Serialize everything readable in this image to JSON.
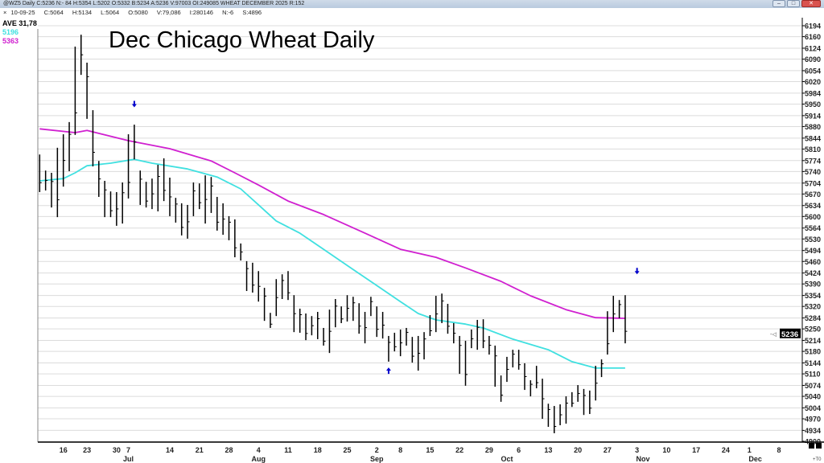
{
  "window": {
    "title": "@WZ5 Daily C:5236 N:- 84 H:5354 L:5202 O:5332 B:5234 A:5236 V:97003 OI:249085 WHEAT DECEMBER 2025 R:152",
    "buttons": {
      "minimize": "–",
      "maximize": "□",
      "close": "✕"
    }
  },
  "info_bar": {
    "date": "10-09-25",
    "close": "C:5064",
    "high": "H:5134",
    "low": "L:5064",
    "open": "O:5080",
    "volume": "V:79,086",
    "oi": "I:280146",
    "net": "N:-6",
    "settle": "S:4896"
  },
  "legend": {
    "ave": "AVE 31,78",
    "ma_fast": "5196",
    "ma_slow": "5363"
  },
  "colors": {
    "ma_fast": "#40e0e0",
    "ma_slow": "#d020d0",
    "bars": "#000000",
    "arrow": "#0000cc",
    "grid": "#dcdcdc"
  },
  "current_price": "5236",
  "corner_label": "+T0",
  "chart_data": {
    "type": "ohlc-bar",
    "title": "Dec Chicago Wheat Daily",
    "ylim": [
      4900,
      6194
    ],
    "yticks": [
      6194,
      6160,
      6124,
      6090,
      6054,
      6020,
      5984,
      5950,
      5914,
      5880,
      5844,
      5810,
      5774,
      5740,
      5704,
      5670,
      5634,
      5600,
      5564,
      5530,
      5494,
      5460,
      5424,
      5390,
      5354,
      5320,
      5284,
      5250,
      5214,
      5180,
      5144,
      5110,
      5074,
      5040,
      5004,
      4970,
      4934,
      4900
    ],
    "xlim_bars": [
      0,
      130
    ],
    "xticks": [
      {
        "label": "16",
        "bar": 5
      },
      {
        "label": "23",
        "bar": 9
      },
      {
        "label": "30",
        "bar": 14
      },
      {
        "label": "7",
        "bar": 16
      },
      {
        "label": "14",
        "bar": 23
      },
      {
        "label": "21",
        "bar": 28
      },
      {
        "label": "28",
        "bar": 33
      },
      {
        "label": "4",
        "bar": 38
      },
      {
        "label": "11",
        "bar": 43
      },
      {
        "label": "18",
        "bar": 48
      },
      {
        "label": "25",
        "bar": 53
      },
      {
        "label": "2",
        "bar": 58
      },
      {
        "label": "8",
        "bar": 62
      },
      {
        "label": "15",
        "bar": 67
      },
      {
        "label": "22",
        "bar": 72
      },
      {
        "label": "29",
        "bar": 77
      },
      {
        "label": "6",
        "bar": 82
      },
      {
        "label": "13",
        "bar": 87
      },
      {
        "label": "20",
        "bar": 92
      },
      {
        "label": "27",
        "bar": 97
      },
      {
        "label": "3",
        "bar": 102
      },
      {
        "label": "10",
        "bar": 107
      },
      {
        "label": "17",
        "bar": 112
      },
      {
        "label": "24",
        "bar": 117
      },
      {
        "label": "1",
        "bar": 121
      },
      {
        "label": "8",
        "bar": 126
      }
    ],
    "months": [
      {
        "label": "Jul",
        "bar": 16
      },
      {
        "label": "Aug",
        "bar": 38
      },
      {
        "label": "Sep",
        "bar": 58
      },
      {
        "label": "Oct",
        "bar": 80
      },
      {
        "label": "Nov",
        "bar": 103
      },
      {
        "label": "Dec",
        "bar": 122
      }
    ],
    "bars_hi_lo": [
      [
        5793,
        5676
      ],
      [
        5743,
        5681
      ],
      [
        5736,
        5628
      ],
      [
        5814,
        5598
      ],
      [
        5856,
        5693
      ],
      [
        5894,
        5741
      ],
      [
        6129,
        5854
      ],
      [
        6166,
        6041
      ],
      [
        6079,
        5904
      ],
      [
        5931,
        5756
      ],
      [
        5773,
        5661
      ],
      [
        5711,
        5598
      ],
      [
        5678,
        5598
      ],
      [
        5676,
        5571
      ],
      [
        5706,
        5578
      ],
      [
        5856,
        5656
      ],
      [
        5886,
        5778
      ],
      [
        5743,
        5636
      ],
      [
        5708,
        5628
      ],
      [
        5718,
        5623
      ],
      [
        5761,
        5616
      ],
      [
        5781,
        5648
      ],
      [
        5721,
        5601
      ],
      [
        5658,
        5581
      ],
      [
        5641,
        5541
      ],
      [
        5636,
        5531
      ],
      [
        5706,
        5601
      ],
      [
        5703,
        5623
      ],
      [
        5728,
        5578
      ],
      [
        5723,
        5611
      ],
      [
        5661,
        5556
      ],
      [
        5641,
        5543
      ],
      [
        5601,
        5526
      ],
      [
        5591,
        5473
      ],
      [
        5516,
        5463
      ],
      [
        5461,
        5368
      ],
      [
        5456,
        5363
      ],
      [
        5430,
        5335
      ],
      [
        5378,
        5275
      ],
      [
        5300,
        5253
      ],
      [
        5405,
        5290
      ],
      [
        5420,
        5343
      ],
      [
        5430,
        5340
      ],
      [
        5355,
        5240
      ],
      [
        5313,
        5238
      ],
      [
        5298,
        5215
      ],
      [
        5290,
        5230
      ],
      [
        5303,
        5218
      ],
      [
        5253,
        5198
      ],
      [
        5310,
        5175
      ],
      [
        5343,
        5255
      ],
      [
        5320,
        5268
      ],
      [
        5355,
        5273
      ],
      [
        5350,
        5275
      ],
      [
        5330,
        5235
      ],
      [
        5303,
        5205
      ],
      [
        5350,
        5290
      ],
      [
        5320,
        5225
      ],
      [
        5303,
        5220
      ],
      [
        5228,
        5148
      ],
      [
        5238,
        5180
      ],
      [
        5248,
        5165
      ],
      [
        5253,
        5198
      ],
      [
        5225,
        5145
      ],
      [
        5228,
        5120
      ],
      [
        5240,
        5155
      ],
      [
        5293,
        5228
      ],
      [
        5353,
        5240
      ],
      [
        5360,
        5268
      ],
      [
        5328,
        5235
      ],
      [
        5268,
        5205
      ],
      [
        5228,
        5110
      ],
      [
        5213,
        5073
      ],
      [
        5248,
        5190
      ],
      [
        5278,
        5185
      ],
      [
        5280,
        5190
      ],
      [
        5228,
        5170
      ],
      [
        5198,
        5070
      ],
      [
        5105,
        5023
      ],
      [
        5163,
        5085
      ],
      [
        5185,
        5130
      ],
      [
        5185,
        5123
      ],
      [
        5143,
        5060
      ],
      [
        5090,
        5040
      ],
      [
        5135,
        5065
      ],
      [
        5095,
        4970
      ],
      [
        5017,
        4945
      ],
      [
        5010,
        4925
      ],
      [
        5015,
        4950
      ],
      [
        5040,
        4955
      ],
      [
        5053,
        5007
      ],
      [
        5075,
        5023
      ],
      [
        5063,
        4982
      ],
      [
        5058,
        4985
      ],
      [
        5135,
        5027
      ],
      [
        5155,
        5100
      ],
      [
        5305,
        5170
      ],
      [
        5353,
        5240
      ],
      [
        5340,
        5283
      ],
      [
        5355,
        5205
      ]
    ],
    "series": [
      {
        "name": "ma_fast",
        "points": [
          [
            1,
            5711
          ],
          [
            5,
            5718
          ],
          [
            7,
            5736
          ],
          [
            9,
            5758
          ],
          [
            13,
            5766
          ],
          [
            17,
            5778
          ],
          [
            20,
            5766
          ],
          [
            26,
            5748
          ],
          [
            31,
            5723
          ],
          [
            35,
            5686
          ],
          [
            38,
            5636
          ],
          [
            41,
            5586
          ],
          [
            45,
            5548
          ],
          [
            49,
            5498
          ],
          [
            54,
            5435
          ],
          [
            58,
            5385
          ],
          [
            62,
            5335
          ],
          [
            65,
            5298
          ],
          [
            68,
            5278
          ],
          [
            73,
            5265
          ],
          [
            76,
            5253
          ],
          [
            81,
            5218
          ],
          [
            87,
            5185
          ],
          [
            91,
            5148
          ],
          [
            95,
            5128
          ],
          [
            100,
            5128
          ]
        ]
      },
      {
        "name": "ma_slow",
        "points": [
          [
            1,
            5873
          ],
          [
            7,
            5861
          ],
          [
            9,
            5868
          ],
          [
            16,
            5836
          ],
          [
            23,
            5811
          ],
          [
            30,
            5773
          ],
          [
            34,
            5736
          ],
          [
            38,
            5698
          ],
          [
            43,
            5648
          ],
          [
            49,
            5606
          ],
          [
            56,
            5548
          ],
          [
            62,
            5498
          ],
          [
            68,
            5473
          ],
          [
            73,
            5440
          ],
          [
            79,
            5398
          ],
          [
            84,
            5353
          ],
          [
            90,
            5310
          ],
          [
            95,
            5285
          ],
          [
            100,
            5283
          ]
        ]
      }
    ],
    "signals": [
      {
        "type": "down",
        "bar": 17,
        "price": 5950
      },
      {
        "type": "up",
        "bar": 60,
        "price": 5120
      },
      {
        "type": "down",
        "bar": 102,
        "price": 5430
      }
    ]
  }
}
